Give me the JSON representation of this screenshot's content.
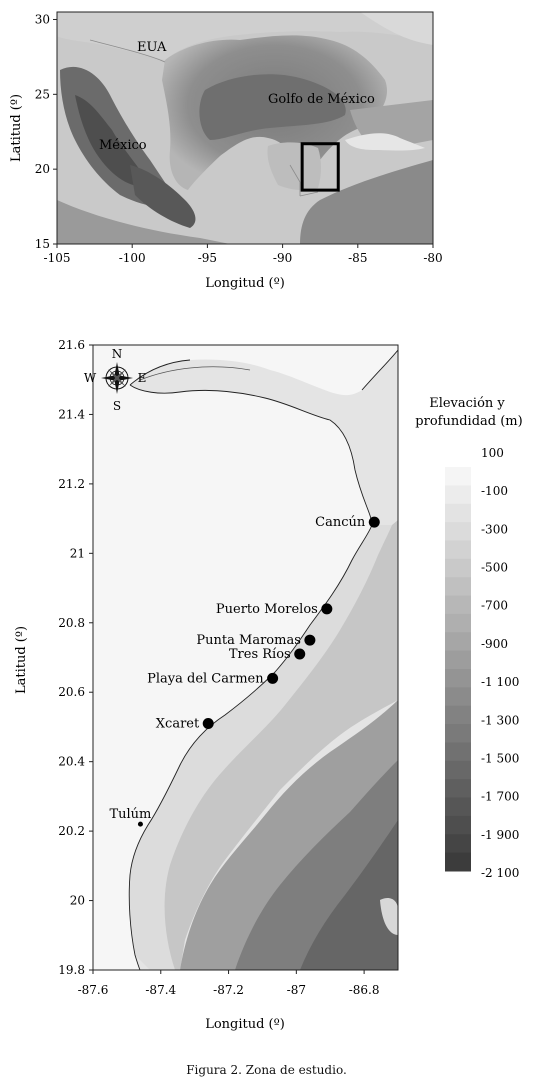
{
  "figure": {
    "caption": "Figura 2. Zona de estudio."
  },
  "overview_map": {
    "xlabel": "Longitud (º)",
    "ylabel": "Latitud (º)",
    "x_ticks": [
      "-105",
      "-100",
      "-95",
      "-90",
      "-85",
      "-80"
    ],
    "y_ticks": [
      "30",
      "25",
      "20",
      "15"
    ],
    "labels": {
      "usa": "EUA",
      "gulf": "Golfo de México",
      "mexico": "México"
    },
    "study_box": {
      "lon_min": -88.7,
      "lon_max": -86.3,
      "lat_min": 18.6,
      "lat_max": 21.7
    }
  },
  "detail_map": {
    "xlabel": "Longitud (º)",
    "ylabel": "Latitud (º)",
    "x_ticks": [
      "-87.6",
      "-87.4",
      "-87.2",
      "-87",
      "-86.8"
    ],
    "y_ticks": [
      "21.6",
      "21.4",
      "21.2",
      "21",
      "20.8",
      "20.6",
      "20.4",
      "20.2",
      "20",
      "19.8"
    ],
    "compass": {
      "n": "N",
      "s": "S",
      "e": "E",
      "w": "W"
    },
    "locations": [
      {
        "name": "Cancún",
        "lon": -86.77,
        "lat": 21.09
      },
      {
        "name": "Puerto Morelos",
        "lon": -86.91,
        "lat": 20.84
      },
      {
        "name": "Punta Maromas",
        "lon": -86.96,
        "lat": 20.75
      },
      {
        "name": "Tres Ríos",
        "lon": -86.99,
        "lat": 20.71
      },
      {
        "name": "Playa del Carmen",
        "lon": -87.07,
        "lat": 20.64
      },
      {
        "name": "Xcaret",
        "lon": -87.26,
        "lat": 20.51
      },
      {
        "name": "Tulúm",
        "lon": -87.46,
        "lat": 20.22
      }
    ]
  },
  "legend": {
    "title_line1": "Elevación y",
    "title_line2": "profundidad (m)",
    "entries": [
      "100",
      "-100",
      "-300",
      "-500",
      "-700",
      "-900",
      "-1 100",
      "-1 300",
      "-1 500",
      "-1 700",
      "-1 900",
      "-2 100"
    ]
  }
}
